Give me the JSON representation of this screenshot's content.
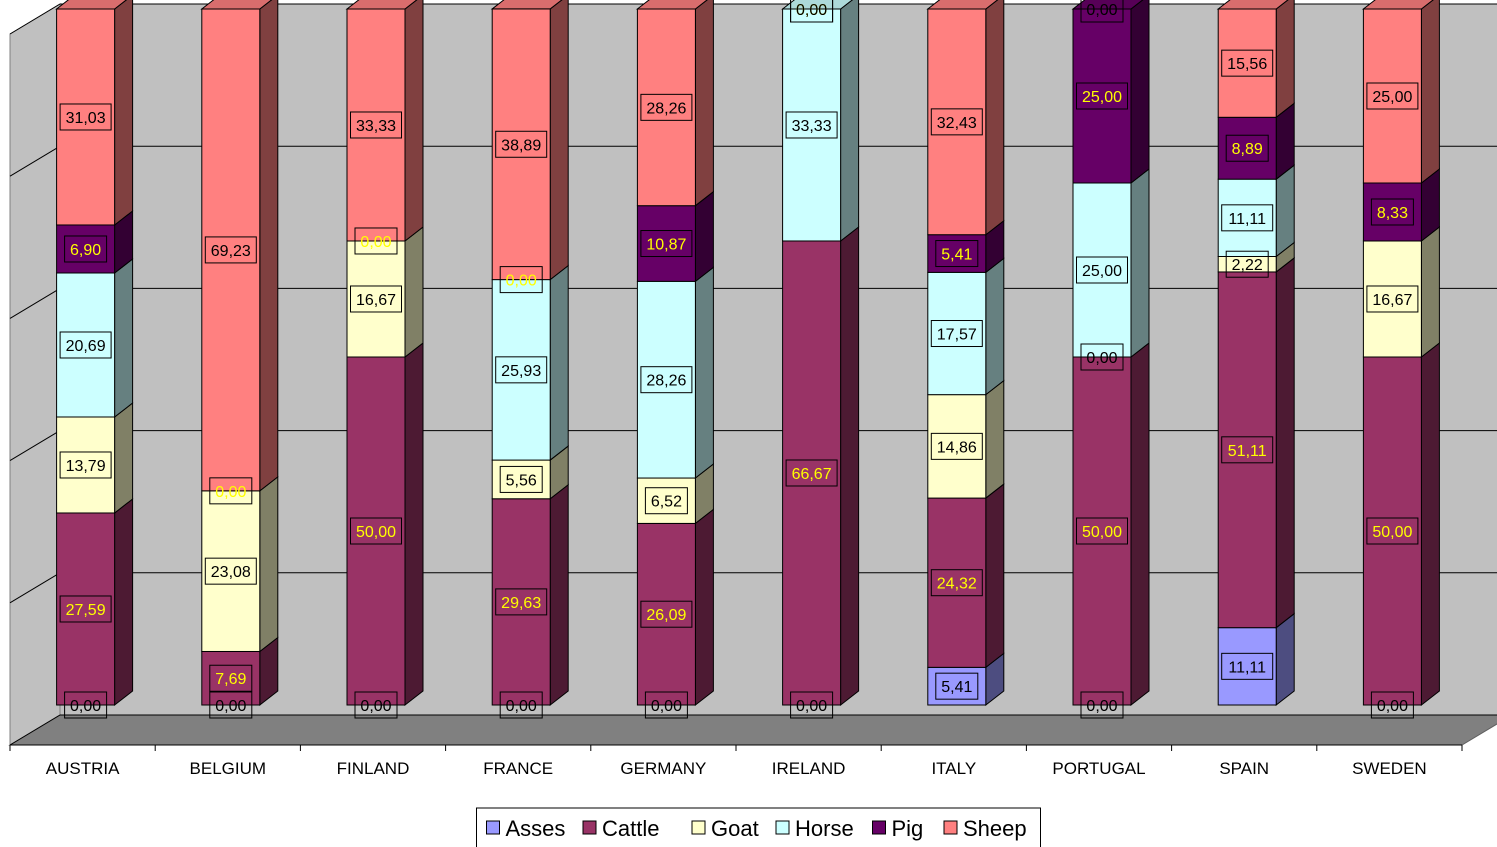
{
  "chart_data": {
    "type": "bar",
    "stacked": true,
    "style": "3d",
    "categories": [
      "AUSTRIA",
      "BELGIUM",
      "FINLAND",
      "FRANCE",
      "GERMANY",
      "IRELAND",
      "ITALY",
      "PORTUGAL",
      "SPAIN",
      "SWEDEN"
    ],
    "series": [
      {
        "name": "Asses",
        "color": "#9999ff",
        "label_color": "#000000",
        "values": [
          0,
          0,
          0,
          0,
          0,
          0,
          5.41,
          0,
          11.11,
          0
        ]
      },
      {
        "name": "Cattle",
        "color": "#993366",
        "label_color": "#ffff00",
        "values": [
          27.59,
          7.69,
          50,
          29.63,
          26.09,
          66.67,
          24.32,
          50,
          51.11,
          50
        ]
      },
      {
        "name": "Goat",
        "color": "#ffffcc",
        "label_color": "#000000",
        "values": [
          13.79,
          23.08,
          16.67,
          5.56,
          6.52,
          0,
          14.86,
          0,
          2.22,
          16.67
        ]
      },
      {
        "name": "Horse",
        "color": "#ccffff",
        "label_color": "#000000",
        "values": [
          20.69,
          0,
          0,
          25.93,
          28.26,
          33.33,
          17.57,
          25,
          11.11,
          0
        ]
      },
      {
        "name": "Pig",
        "color": "#660066",
        "label_color": "#ffff00",
        "values": [
          6.9,
          0,
          0,
          0,
          10.87,
          0,
          5.41,
          25,
          8.89,
          8.33
        ]
      },
      {
        "name": "Sheep",
        "color": "#ff8080",
        "label_color": "#000000",
        "values": [
          31.03,
          69.23,
          33.33,
          38.89,
          28.26,
          0,
          32.43,
          0,
          15.56,
          25
        ]
      }
    ],
    "labels": [
      [
        "0,00",
        "27,59",
        "13,79",
        "20,69",
        "6,90",
        "31,03"
      ],
      [
        "0,00",
        "7,69",
        "23,08",
        null,
        "0,00",
        "69,23"
      ],
      [
        "0,00",
        "50,00",
        "16,67",
        null,
        "0,00",
        "33,33"
      ],
      [
        "0,00",
        "29,63",
        "5,56",
        "25,93",
        "0,00",
        "38,89"
      ],
      [
        "0,00",
        "26,09",
        "6,52",
        "28,26",
        "10,87",
        "28,26"
      ],
      [
        "0,00",
        "66,67",
        null,
        "33,33",
        "0,00",
        "0,00"
      ],
      [
        "5,41",
        "24,32",
        "14,86",
        "17,57",
        "5,41",
        "32,43"
      ],
      [
        "0,00",
        "50,00",
        "0,00",
        "25,00",
        "25,00",
        "0,00"
      ],
      [
        "11,11",
        "51,11",
        "2,22",
        "11,11",
        "8,89",
        "15,56"
      ],
      [
        "0,00",
        "50,00",
        "16,67",
        null,
        "8,33",
        "25,00"
      ]
    ],
    "ylim": [
      0,
      100
    ],
    "grid": true,
    "legend_position": "bottom",
    "title": "",
    "xlabel": "",
    "ylabel": ""
  }
}
